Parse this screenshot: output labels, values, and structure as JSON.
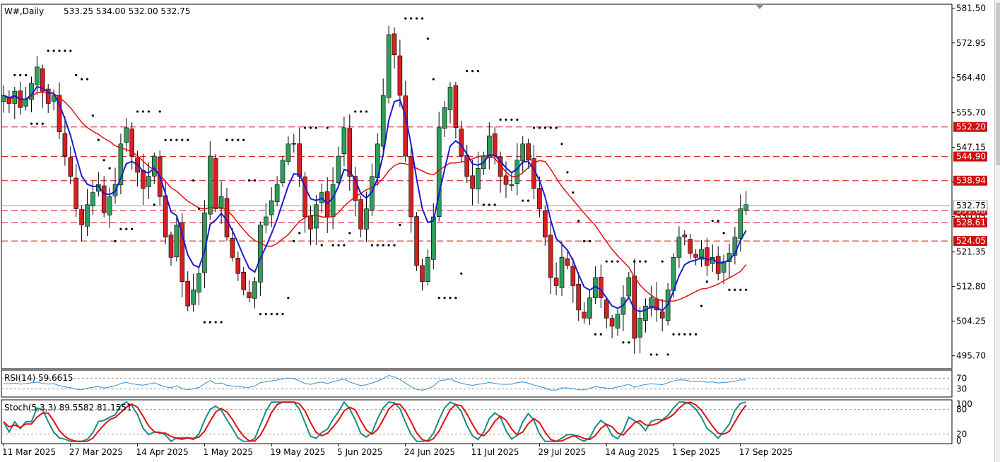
{
  "header": {
    "symbol": "W#,Daily",
    "ohlc": "533.25 534.00 532.00 532.75"
  },
  "rsi_label": "RSI(14) 59.6615",
  "stoch_label": "Stoch(5,3,3) 89.5582 81.1551",
  "current_price_label": "532.75",
  "colors": {
    "bull": "#2e9e5a",
    "bear": "#d62020",
    "ma_fast": "#1a1ad6",
    "ma_slow": "#e01010",
    "level": "#d01010",
    "rsi": "#2f8fd8",
    "stoch_main": "#1a8a8a",
    "stoch_signal": "#e01010"
  },
  "chart_data": {
    "type": "candlestick",
    "title": "W#,Daily",
    "yticks": [
      581.5,
      572.95,
      564.4,
      555.7,
      547.15,
      538.6,
      530.05,
      521.35,
      512.8,
      504.25,
      495.7
    ],
    "ylim": [
      492.5,
      582.5
    ],
    "xticks": [
      {
        "label": "11 Mar 2025",
        "i": 0
      },
      {
        "label": "27 Mar 2025",
        "i": 12
      },
      {
        "label": "14 Apr 2025",
        "i": 24
      },
      {
        "label": "1 May 2025",
        "i": 36
      },
      {
        "label": "19 May 2025",
        "i": 48
      },
      {
        "label": "5 Jun 2025",
        "i": 60
      },
      {
        "label": "24 Jun 2025",
        "i": 72
      },
      {
        "label": "11 Jul 2025",
        "i": 84
      },
      {
        "label": "29 Jul 2025",
        "i": 96
      },
      {
        "label": "14 Aug 2025",
        "i": 108
      },
      {
        "label": "1 Sep 2025",
        "i": 120
      },
      {
        "label": "17 Sep 2025",
        "i": 132
      }
    ],
    "horizontal_levels": [
      {
        "label": "552.20",
        "value": 552.2
      },
      {
        "label": "544.90",
        "value": 544.9
      },
      {
        "label": "538.94",
        "value": 538.94
      },
      {
        "label": "531.60",
        "value": 531.6
      },
      {
        "label": "528.61",
        "value": 528.61
      },
      {
        "label": "524.05",
        "value": 524.05
      }
    ],
    "current_price": 532.75,
    "closes": [
      560,
      558,
      561,
      557,
      559,
      563,
      567,
      561,
      558,
      560,
      551,
      545,
      540,
      532,
      528,
      533,
      536,
      538,
      531,
      535,
      538,
      548,
      552,
      545,
      541,
      537,
      540,
      545,
      535,
      525,
      520,
      528,
      514,
      508,
      512,
      516,
      531,
      545,
      532,
      535,
      525,
      520,
      516,
      512,
      510,
      514,
      528,
      530,
      534,
      538,
      544,
      548,
      548,
      540,
      530,
      527,
      533,
      536,
      530,
      538,
      545,
      552,
      540,
      534,
      527,
      532,
      540,
      548,
      560,
      575,
      570,
      560,
      545,
      530,
      518,
      514,
      520,
      530,
      552,
      557,
      562,
      552,
      545,
      540,
      537,
      542,
      545,
      550,
      545,
      540,
      538,
      538,
      544,
      548,
      544,
      537,
      532,
      525,
      515,
      513,
      520,
      518,
      513,
      507,
      505,
      510,
      515,
      510,
      505,
      503,
      506,
      510,
      515,
      500,
      505,
      508,
      510,
      507,
      505,
      512,
      520,
      525,
      525,
      521,
      520,
      522,
      518,
      520,
      516,
      519,
      521,
      525,
      532,
      533
    ]
  }
}
